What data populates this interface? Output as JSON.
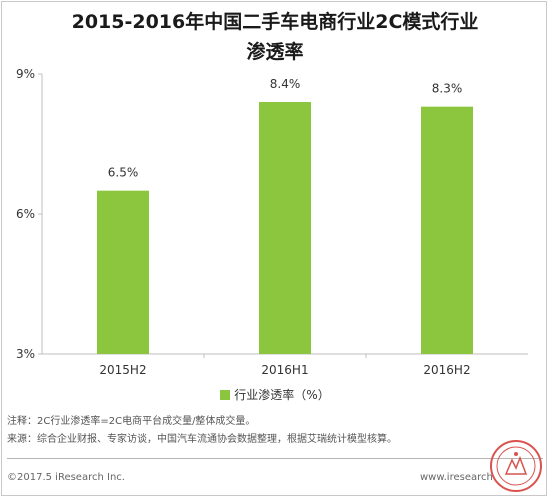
{
  "chart_data": {
    "type": "bar",
    "title_line1": "2015-2016年中国二手车电商行业2C模式行业",
    "title_line2": "渗透率",
    "categories": [
      "2015H2",
      "2016H1",
      "2016H2"
    ],
    "series": [
      {
        "name": "行业渗透率（%）",
        "values": [
          6.5,
          8.4,
          8.3
        ],
        "labels": [
          "6.5%",
          "8.4%",
          "8.3%"
        ]
      }
    ],
    "ylim": [
      3,
      9
    ],
    "yticks": [
      3,
      6,
      9
    ],
    "ytick_labels": [
      "3%",
      "6%",
      "9%"
    ],
    "grid": false,
    "legend_position": "bottom",
    "bar_color": "#8cc63f"
  },
  "notes": {
    "note1": "注释：2C行业渗透率=2C电商平台成交量/整体成交量。",
    "note2": "来源：综合企业财报、专家访谈，中国汽车流通协会数据整理，根据艾瑞统计模型核算。"
  },
  "footer": {
    "copyright": "©2017.5 iResearch Inc.",
    "site": "www.iresearch"
  }
}
